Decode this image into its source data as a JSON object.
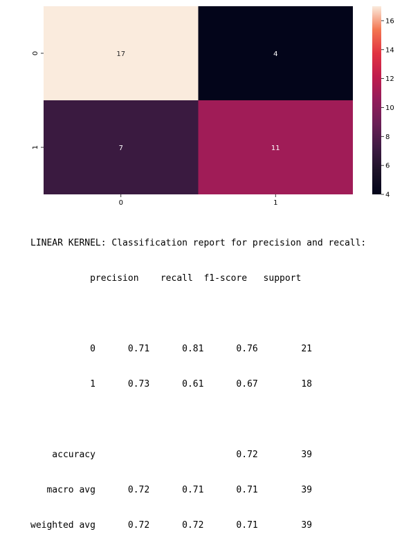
{
  "chart_data": {
    "type": "heatmap",
    "title": "",
    "xlabel": "",
    "ylabel": "",
    "x_tick_labels": [
      "0",
      "1"
    ],
    "y_tick_labels": [
      "0",
      "1"
    ],
    "matrix": [
      [
        17,
        4
      ],
      [
        7,
        11
      ]
    ],
    "colorbar": {
      "min": 4,
      "max": 17,
      "ticks": [
        4,
        6,
        8,
        10,
        12,
        14,
        16
      ],
      "colormap": "rocket"
    },
    "annotations": true
  },
  "report": {
    "title": "LINEAR KERNEL: Classification report for precision and recall:",
    "header": [
      "precision",
      "recall",
      "f1-score",
      "support"
    ],
    "rows": [
      {
        "label": "0",
        "precision": "0.71",
        "recall": "0.81",
        "f1": "0.76",
        "support": "21"
      },
      {
        "label": "1",
        "precision": "0.73",
        "recall": "0.61",
        "f1": "0.67",
        "support": "18"
      }
    ],
    "summary": [
      {
        "label": "accuracy",
        "precision": "",
        "recall": "",
        "f1": "0.72",
        "support": "39"
      },
      {
        "label": "macro avg",
        "precision": "0.72",
        "recall": "0.71",
        "f1": "0.71",
        "support": "39"
      },
      {
        "label": "weighted avg",
        "precision": "0.72",
        "recall": "0.72",
        "f1": "0.71",
        "support": "39"
      }
    ]
  }
}
